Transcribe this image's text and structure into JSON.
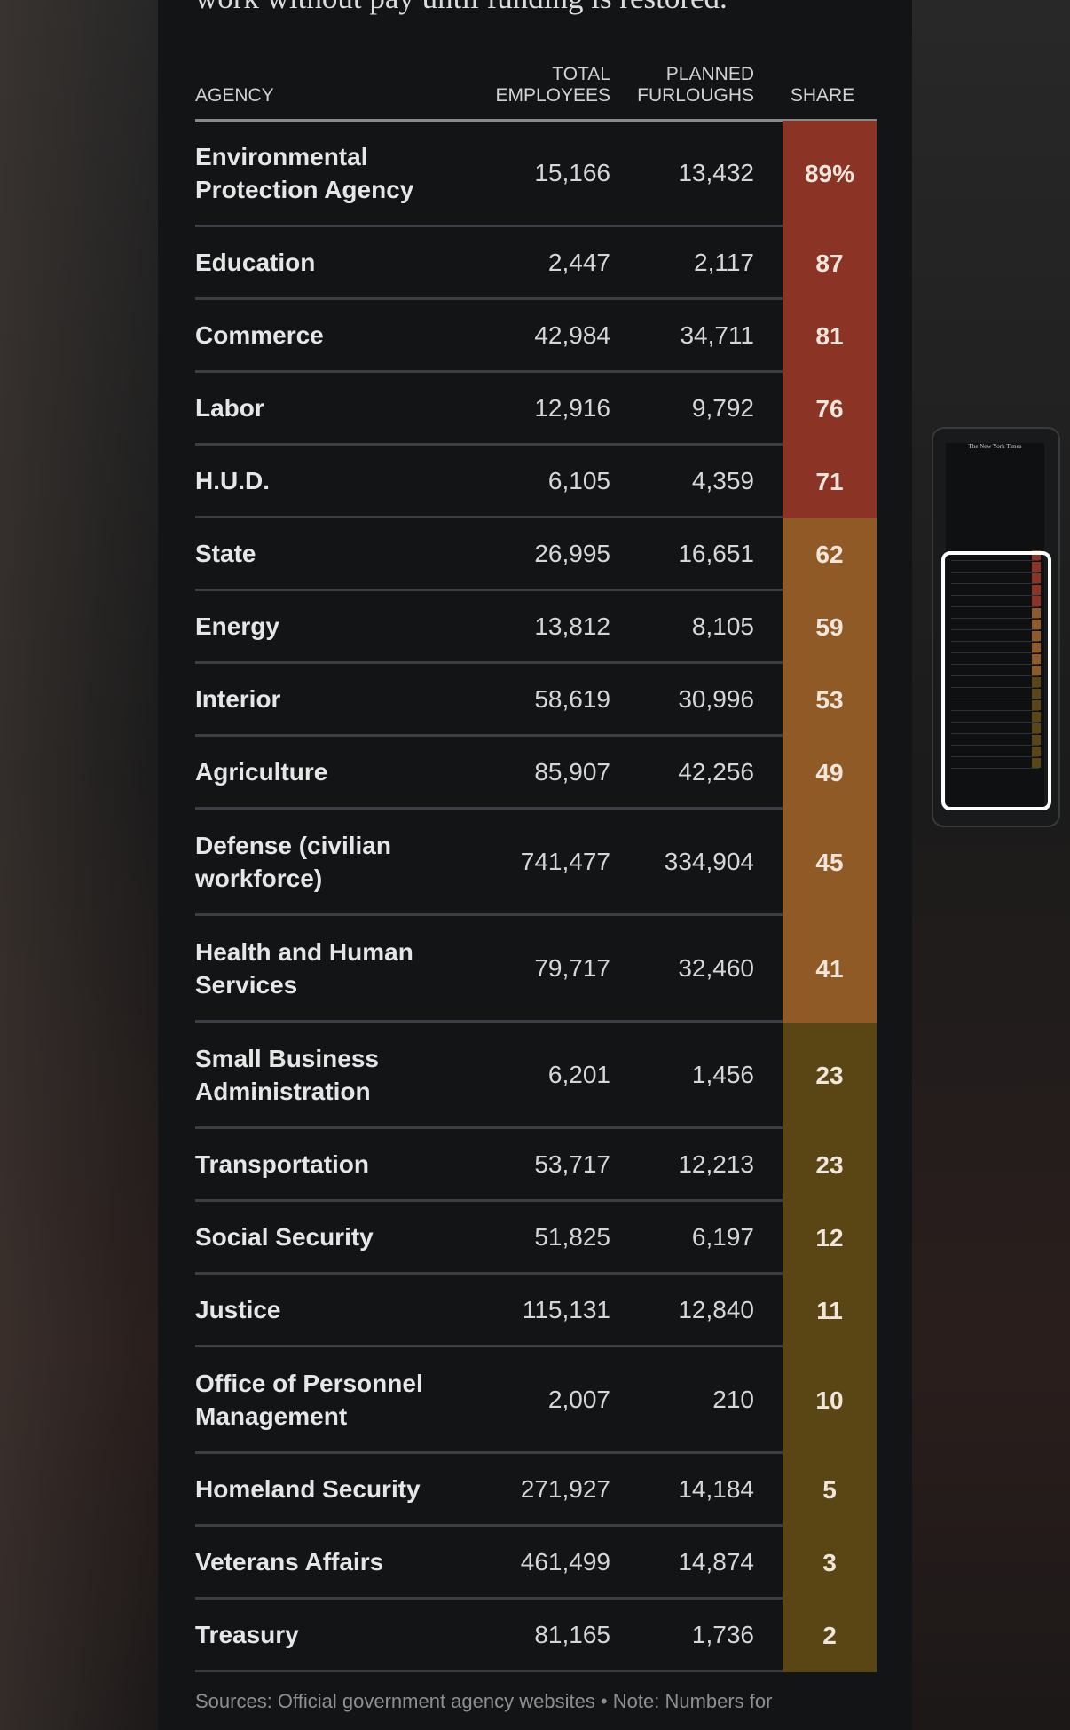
{
  "intro_text": "work without pay until funding is restored.",
  "table": {
    "headers": {
      "agency": "AGENCY",
      "total_line1": "TOTAL",
      "total_line2": "EMPLOYEES",
      "planned_line1": "PLANNED",
      "planned_line2": "FURLOUGHS",
      "share": "SHARE"
    },
    "rows": [
      {
        "agency": "Environmental Protection Agency",
        "total": "15,166",
        "planned": "13,432",
        "share": "89%",
        "color": "#8b3325",
        "lines": 2
      },
      {
        "agency": "Education",
        "total": "2,447",
        "planned": "2,117",
        "share": "87",
        "color": "#8b3325",
        "lines": 1
      },
      {
        "agency": "Commerce",
        "total": "42,984",
        "planned": "34,711",
        "share": "81",
        "color": "#8b3325",
        "lines": 1
      },
      {
        "agency": "Labor",
        "total": "12,916",
        "planned": "9,792",
        "share": "76",
        "color": "#8b3325",
        "lines": 1
      },
      {
        "agency": "H.U.D.",
        "total": "6,105",
        "planned": "4,359",
        "share": "71",
        "color": "#8b3325",
        "lines": 1
      },
      {
        "agency": "State",
        "total": "26,995",
        "planned": "16,651",
        "share": "62",
        "color": "#8f5a26",
        "lines": 1
      },
      {
        "agency": "Energy",
        "total": "13,812",
        "planned": "8,105",
        "share": "59",
        "color": "#8f5a26",
        "lines": 1
      },
      {
        "agency": "Interior",
        "total": "58,619",
        "planned": "30,996",
        "share": "53",
        "color": "#8f5a26",
        "lines": 1
      },
      {
        "agency": "Agriculture",
        "total": "85,907",
        "planned": "42,256",
        "share": "49",
        "color": "#8f5a26",
        "lines": 1
      },
      {
        "agency": "Defense (civilian workforce)",
        "total": "741,477",
        "planned": "334,904",
        "share": "45",
        "color": "#8f5a26",
        "lines": 2
      },
      {
        "agency": "Health and Human Services",
        "total": "79,717",
        "planned": "32,460",
        "share": "41",
        "color": "#8f5a26",
        "lines": 2
      },
      {
        "agency": "Small Business Administration",
        "total": "6,201",
        "planned": "1,456",
        "share": "23",
        "color": "#5a4515",
        "lines": 2
      },
      {
        "agency": "Transportation",
        "total": "53,717",
        "planned": "12,213",
        "share": "23",
        "color": "#5a4515",
        "lines": 1
      },
      {
        "agency": "Social Security",
        "total": "51,825",
        "planned": "6,197",
        "share": "12",
        "color": "#5a4515",
        "lines": 1
      },
      {
        "agency": "Justice",
        "total": "115,131",
        "planned": "12,840",
        "share": "11",
        "color": "#5a4515",
        "lines": 1
      },
      {
        "agency": "Office of Personnel Management",
        "total": "2,007",
        "planned": "210",
        "share": "10",
        "color": "#5a4515",
        "lines": 2
      },
      {
        "agency": "Homeland Security",
        "total": "271,927",
        "planned": "14,184",
        "share": "5",
        "color": "#5a4515",
        "lines": 1
      },
      {
        "agency": "Veterans Affairs",
        "total": "461,499",
        "planned": "14,874",
        "share": "3",
        "color": "#5a4515",
        "lines": 1
      },
      {
        "agency": "Treasury",
        "total": "81,165",
        "planned": "1,736",
        "share": "2",
        "color": "#5a4515",
        "lines": 1
      }
    ]
  },
  "footer_text": "Sources: Official government agency websites  •  Note: Numbers for",
  "preview": {
    "title": "The New York Times"
  }
}
